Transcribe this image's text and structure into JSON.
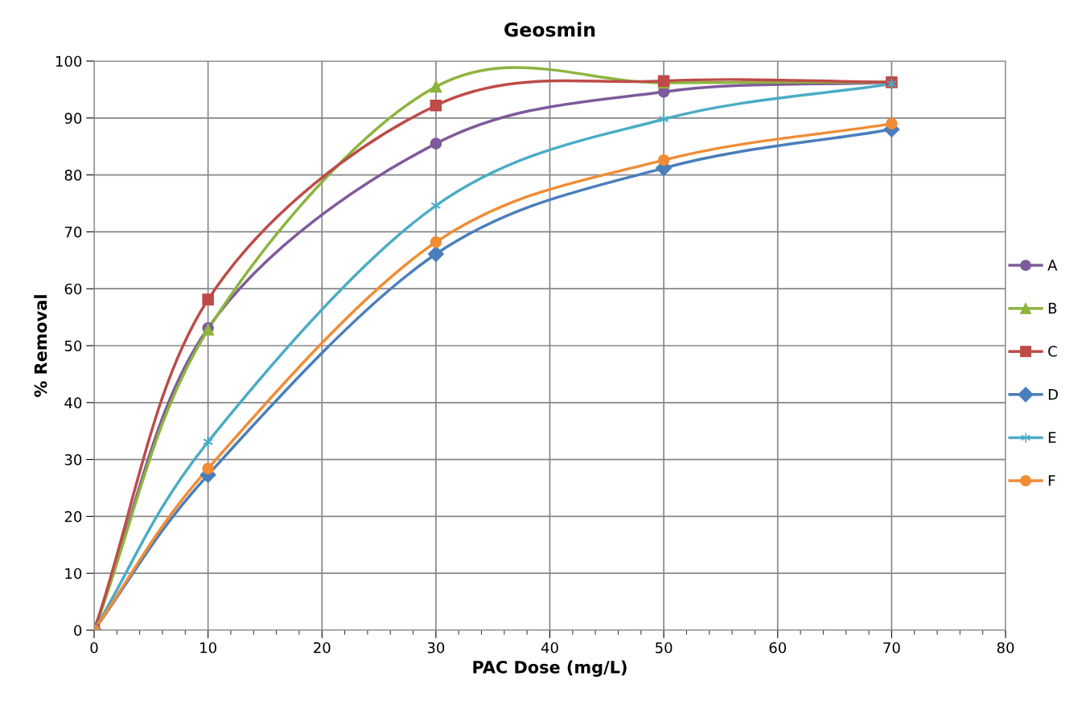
{
  "chart_data": {
    "type": "line",
    "title": "Geosmin",
    "xlabel": "PAC Dose (mg/L)",
    "ylabel": "% Removal",
    "x": [
      0,
      10,
      30,
      50,
      70
    ],
    "series": [
      {
        "name": "A",
        "color": "#7e5a9b",
        "marker": "circle",
        "values": [
          0,
          53.1,
          85.5,
          94.6,
          96.3
        ]
      },
      {
        "name": "B",
        "color": "#8db43e",
        "marker": "triangle",
        "values": [
          0,
          52.8,
          95.5,
          96.2,
          96.3
        ]
      },
      {
        "name": "C",
        "color": "#be4b48",
        "marker": "square",
        "values": [
          0,
          58.1,
          92.2,
          96.5,
          96.3
        ]
      },
      {
        "name": "D",
        "color": "#4a7ebb",
        "marker": "diamond",
        "values": [
          0,
          27.3,
          66.1,
          81.2,
          88.0
        ]
      },
      {
        "name": "E",
        "color": "#4bacc6",
        "marker": "cross",
        "values": [
          0,
          33.1,
          74.6,
          89.8,
          96.0
        ]
      },
      {
        "name": "F",
        "color": "#f08c35",
        "marker": "circle",
        "values": [
          0,
          28.4,
          68.2,
          82.6,
          89.0
        ]
      }
    ],
    "xlim": [
      0,
      80
    ],
    "ylim": [
      0,
      100
    ],
    "xticks": [
      0,
      {
        "value": 2,
        "label": null
      },
      {
        "value": 4,
        "label": null
      },
      {
        "value": 6,
        "label": null
      },
      {
        "value": 8,
        "label": null
      },
      10,
      {
        "value": 12,
        "label": null
      },
      {
        "value": 14,
        "label": null
      },
      {
        "value": 16,
        "label": null
      },
      {
        "value": 18,
        "label": null
      },
      20,
      {
        "value": 22,
        "label": null
      },
      {
        "value": 24,
        "label": null
      },
      {
        "value": 26,
        "label": null
      },
      {
        "value": 28,
        "label": null
      },
      30,
      {
        "value": 32,
        "label": null
      },
      {
        "value": 34,
        "label": null
      },
      {
        "value": 36,
        "label": null
      },
      {
        "value": 38,
        "label": null
      },
      40,
      {
        "value": 42,
        "label": null
      },
      {
        "value": 44,
        "label": null
      },
      {
        "value": 46,
        "label": null
      },
      {
        "value": 48,
        "label": null
      },
      50,
      {
        "value": 52,
        "label": null
      },
      {
        "value": 54,
        "label": null
      },
      {
        "value": 56,
        "label": null
      },
      {
        "value": 58,
        "label": null
      },
      60,
      {
        "value": 62,
        "label": null
      },
      {
        "value": 64,
        "label": null
      },
      {
        "value": 66,
        "label": null
      },
      {
        "value": 68,
        "label": null
      },
      70,
      {
        "value": 72,
        "label": null
      },
      {
        "value": 74,
        "label": null
      },
      {
        "value": 76,
        "label": null
      },
      {
        "value": 78,
        "label": null
      },
      80
    ],
    "yticks": [
      0,
      10,
      20,
      30,
      40,
      50,
      60,
      70,
      80,
      90,
      100
    ],
    "grid": true,
    "legend": "right",
    "line_style": "solid"
  }
}
